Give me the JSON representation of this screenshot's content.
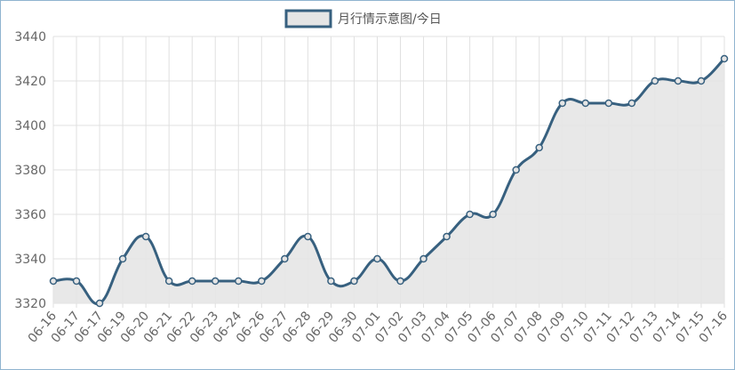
{
  "chart_data": {
    "type": "line",
    "categories": [
      "06-16",
      "06-17",
      "06-17",
      "06-19",
      "06-20",
      "06-21",
      "06-22",
      "06-23",
      "06-24",
      "06-26",
      "06-27",
      "06-28",
      "06-29",
      "06-30",
      "07-01",
      "07-02",
      "07-03",
      "07-04",
      "07-05",
      "07-06",
      "07-07",
      "07-08",
      "07-09",
      "07-10",
      "07-11",
      "07-12",
      "07-13",
      "07-14",
      "07-15",
      "07-16"
    ],
    "series": [
      {
        "name": "月行情示意图/今日",
        "color": "#37607f",
        "fill": "#e5e5e5",
        "values": [
          3330,
          3330,
          3320,
          3340,
          3350,
          3330,
          3330,
          3330,
          3330,
          3330,
          3340,
          3350,
          3330,
          3330,
          3340,
          3330,
          3340,
          3350,
          3360,
          3360,
          3380,
          3390,
          3410,
          3410,
          3410,
          3410,
          3420,
          3420,
          3420,
          3430
        ]
      }
    ],
    "ylim": [
      3320,
      3440
    ],
    "yticks": [
      3320,
      3340,
      3360,
      3380,
      3400,
      3420,
      3440
    ],
    "grid": true,
    "legend": "top"
  }
}
